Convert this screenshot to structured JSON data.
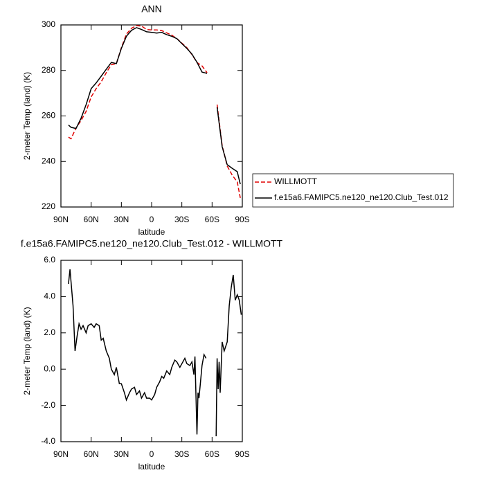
{
  "chart_data": [
    {
      "type": "line",
      "title": "ANN",
      "x_label": "latitude",
      "y_label": "2-meter Temp (land) (K)",
      "x": [
        82.5,
        80,
        75,
        70,
        65,
        60,
        55,
        50,
        45,
        40,
        35,
        30,
        25,
        20,
        15,
        10,
        5,
        0,
        -5,
        -10,
        -15,
        -20,
        -25,
        -30,
        -35,
        -40,
        -45,
        -50,
        -55,
        -60,
        -65,
        -70,
        -75,
        -80,
        -85,
        -88
      ],
      "series": [
        {
          "name": "WILLMOTT",
          "color": "#e00000",
          "dashed": true,
          "values": [
            250.7,
            250,
            254.7,
            258,
            262,
            268.4,
            272,
            275,
            279,
            282.5,
            283,
            290,
            296,
            298.5,
            299.7,
            299.5,
            298,
            297.8,
            297.8,
            297.5,
            296.5,
            295.5,
            294,
            292,
            290,
            287,
            283.5,
            282,
            279,
            null,
            265,
            247,
            238,
            234,
            231,
            224
          ]
        },
        {
          "name": "f.e15a6.FAMIPC5.ne120_ne120.Club_Test.012",
          "color": "#000000",
          "dashed": false,
          "values": [
            256,
            255,
            254.5,
            259,
            265,
            272,
            274.5,
            277.5,
            280.5,
            283.5,
            283,
            289.7,
            295,
            297.6,
            298.8,
            298,
            297,
            296.7,
            296.4,
            296.7,
            295.7,
            295,
            294,
            291.8,
            289.7,
            287.2,
            283.6,
            279.3,
            278.7,
            null,
            263.8,
            246.5,
            238.6,
            237,
            235.5,
            230
          ]
        }
      ],
      "xlim": [
        90,
        -90
      ],
      "xticks": [
        {
          "value": 90,
          "label": "90N"
        },
        {
          "value": 60,
          "label": "60N"
        },
        {
          "value": 30,
          "label": "30N"
        },
        0,
        {
          "value": -30,
          "label": "30S"
        },
        {
          "value": -60,
          "label": "60S"
        },
        {
          "value": -90,
          "label": "90S"
        }
      ],
      "ylim": [
        220,
        300
      ],
      "yticks": [
        220,
        240,
        260,
        280,
        300
      ],
      "legend": "outside-right"
    },
    {
      "type": "line",
      "title": "f.e15a6.FAMIPC5.ne120_ne120.Club_Test.012 - WILLMOTT",
      "x_label": "latitude",
      "y_label": "2-meter Temp (land) (K)",
      "x": [
        82.5,
        81,
        78,
        76,
        74,
        72,
        70,
        68,
        65,
        63,
        60,
        57,
        55,
        52,
        50,
        48,
        45,
        42,
        40,
        37,
        35,
        32,
        30,
        27,
        25,
        22,
        20,
        17,
        15,
        12,
        10,
        7,
        5,
        2,
        0,
        -3,
        -5,
        -8,
        -10,
        -12,
        -15,
        -18,
        -20,
        -23,
        -25,
        -28,
        -30,
        -33,
        -35,
        -38,
        -40,
        -42,
        -43,
        -45,
        -46,
        -47,
        -48,
        -50,
        -52,
        -54,
        -58,
        -64,
        -65,
        -66,
        -67,
        -68,
        -70,
        -72,
        -75,
        -77,
        -79,
        -81,
        -83,
        -85,
        -87,
        -89
      ],
      "values": [
        4.7,
        5.5,
        3.5,
        1.0,
        1.8,
        2.5,
        2.2,
        2.4,
        2.0,
        2.4,
        2.5,
        2.3,
        2.5,
        2.4,
        1.6,
        1.7,
        1.0,
        0.6,
        0.0,
        -0.3,
        0.1,
        -0.8,
        -0.8,
        -1.3,
        -1.7,
        -1.3,
        -1.1,
        -1.0,
        -1.4,
        -1.2,
        -1.6,
        -1.3,
        -1.6,
        -1.6,
        -1.7,
        -1.4,
        -1.0,
        -0.7,
        -0.4,
        -0.5,
        -0.1,
        -0.3,
        0.1,
        0.5,
        0.4,
        0.1,
        0.3,
        0.6,
        0.3,
        0.2,
        0.4,
        -0.3,
        0.7,
        -3.6,
        -1.3,
        -1.6,
        -1.0,
        0.2,
        0.8,
        0.6,
        null,
        -3.7,
        0.6,
        -1.1,
        0.4,
        -1.3,
        1.5,
        1.0,
        1.5,
        3.5,
        4.5,
        5.2,
        3.8,
        4.1,
        3.8,
        3.0
      ],
      "color": "#000000",
      "xlim": [
        90,
        -90
      ],
      "xticks": [
        {
          "value": 90,
          "label": "90N"
        },
        {
          "value": 60,
          "label": "60N"
        },
        {
          "value": 30,
          "label": "30N"
        },
        0,
        {
          "value": -30,
          "label": "30S"
        },
        {
          "value": -60,
          "label": "60S"
        },
        {
          "value": -90,
          "label": "90S"
        }
      ],
      "ylim": [
        -4,
        6
      ],
      "yticks": [
        {
          "value": -4,
          "label": "-4.0"
        },
        {
          "value": -2,
          "label": "-2.0"
        },
        {
          "value": 0,
          "label": "0.0"
        },
        {
          "value": 2,
          "label": "2.0"
        },
        {
          "value": 4,
          "label": "4.0"
        },
        {
          "value": 6,
          "label": "6.0"
        }
      ]
    }
  ]
}
